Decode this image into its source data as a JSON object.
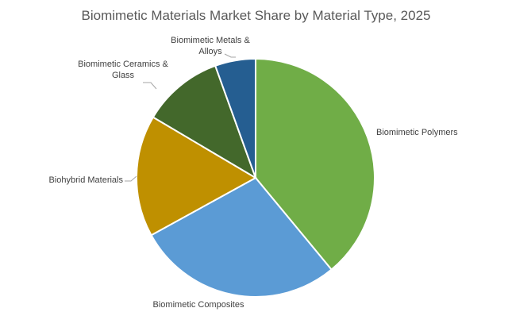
{
  "chart_data": {
    "type": "pie",
    "title": "Biomimetic Materials Market Share by Material Type, 2025",
    "categories": [
      "Biomimetic Polymers",
      "Biomimetic Composites",
      "Biohybrid Materials",
      "Biomimetic Ceramics & Glass",
      "Biomimetic Metals & Alloys"
    ],
    "values": [
      39,
      28,
      16.5,
      11,
      5.5
    ],
    "colors": [
      "#70ad47",
      "#5b9bd5",
      "#bf9000",
      "#43682b",
      "#255e91"
    ]
  }
}
